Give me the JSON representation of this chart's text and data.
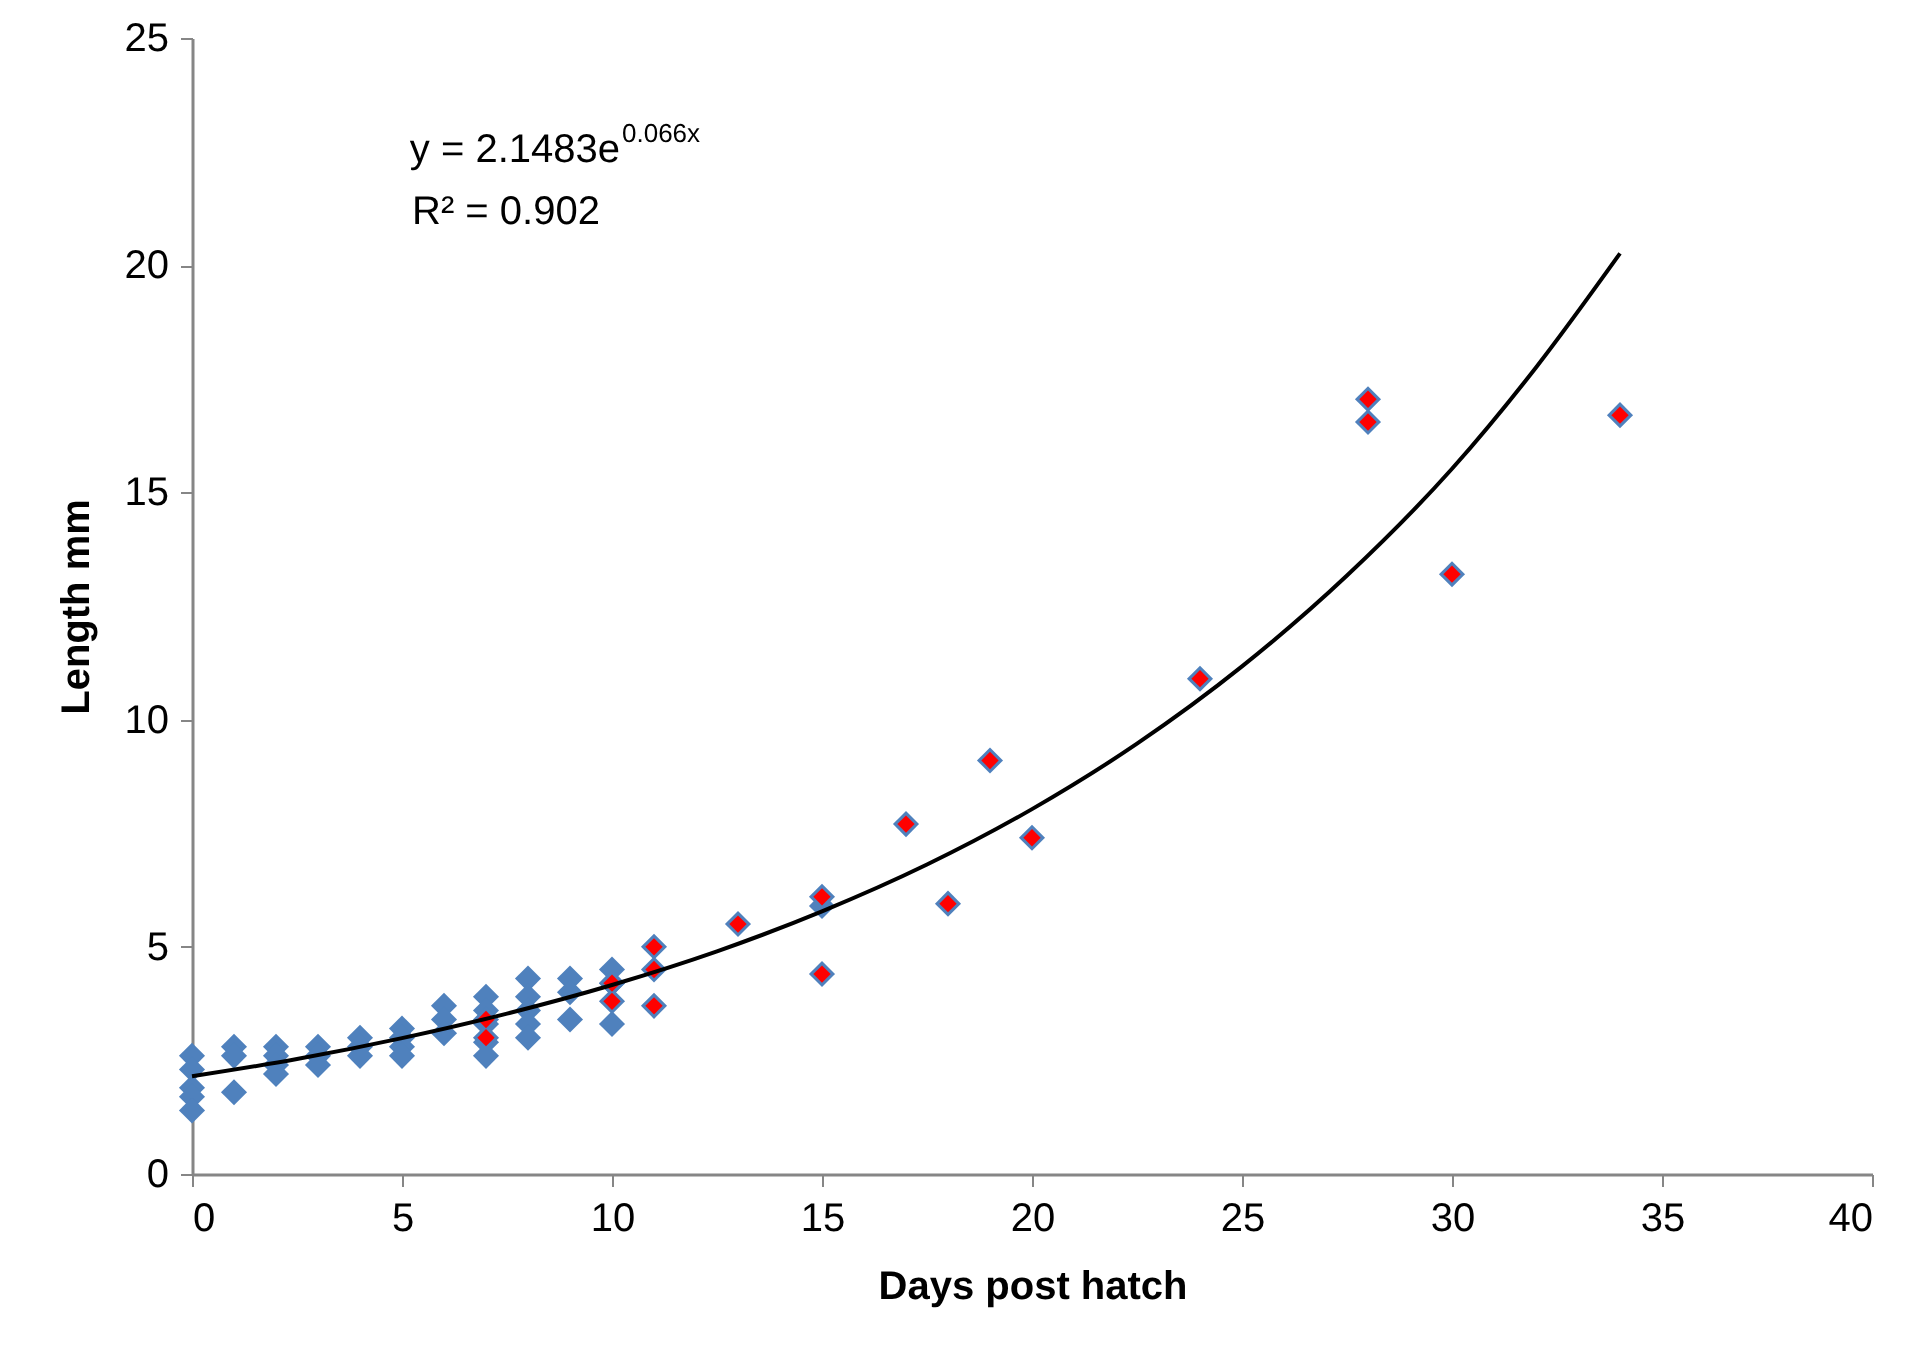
{
  "chart_data": {
    "type": "scatter",
    "xlabel": "Days post hatch",
    "ylabel": "Length mm",
    "xlim": [
      0,
      40
    ],
    "xticks": [
      0,
      5,
      10,
      15,
      20,
      25,
      30,
      35,
      40
    ],
    "ylim": [
      0,
      25
    ],
    "yticks": [
      0,
      5,
      10,
      15,
      20,
      25
    ],
    "grid": false,
    "marker": "diamond",
    "annotations": [
      "y = 2.1483e$^{0.066x}$",
      "R² = 0.902"
    ],
    "series": [
      {
        "color": "#4f81bd",
        "x": [
          0,
          0,
          0,
          0,
          0,
          1,
          1,
          1,
          2,
          2,
          2,
          2,
          3,
          3,
          3,
          4,
          4,
          4,
          5,
          5,
          5,
          5,
          6,
          6,
          6,
          7,
          7,
          7,
          7,
          7,
          7,
          7,
          8,
          8,
          8,
          8,
          8,
          9,
          9,
          9,
          10,
          10,
          10,
          10,
          10,
          11,
          11,
          11,
          13,
          15,
          15,
          15,
          17,
          18,
          19,
          20,
          24,
          28,
          28,
          30,
          34
        ],
        "values": [
          2.6,
          2.3,
          1.9,
          1.7,
          1.4,
          2.8,
          2.6,
          1.8,
          2.8,
          2.6,
          2.4,
          2.2,
          2.8,
          2.6,
          2.4,
          3.0,
          2.8,
          2.6,
          3.2,
          3.0,
          2.8,
          2.6,
          3.7,
          3.4,
          3.1,
          3.9,
          3.6,
          3.3,
          2.9,
          2.6,
          3.4,
          3.0,
          4.3,
          3.9,
          3.6,
          3.3,
          3.0,
          4.3,
          4.0,
          3.4,
          4.5,
          4.2,
          3.3,
          4.2,
          3.8,
          5.0,
          4.5,
          3.7,
          5.5,
          6.1,
          5.9,
          4.4,
          7.7,
          5.95,
          9.1,
          7.4,
          10.9,
          17.05,
          16.55,
          13.2,
          16.7
        ]
      },
      {
        "color": "#ff0000",
        "x": [
          7,
          7,
          10,
          10,
          11,
          11,
          11,
          13,
          15,
          15,
          17,
          18,
          19,
          20,
          24,
          28,
          28,
          30,
          34
        ],
        "values": [
          3.4,
          3.0,
          4.2,
          3.8,
          5.0,
          4.5,
          3.7,
          5.5,
          6.1,
          4.4,
          7.7,
          5.95,
          9.1,
          7.4,
          10.9,
          17.05,
          16.55,
          13.2,
          16.7
        ]
      },
      {
        "type": "line",
        "color": "#000000",
        "marker": "none",
        "line_style": "solid",
        "x": [
          0,
          2.5,
          5,
          7.5,
          10,
          12.5,
          15,
          17.5,
          20,
          22.5,
          25,
          27.5,
          30,
          32,
          34
        ],
        "values": [
          2.15,
          2.53,
          2.99,
          3.53,
          4.16,
          4.9,
          5.78,
          6.81,
          8.03,
          9.47,
          11.17,
          13.17,
          15.52,
          17.75,
          20.26
        ]
      }
    ]
  }
}
